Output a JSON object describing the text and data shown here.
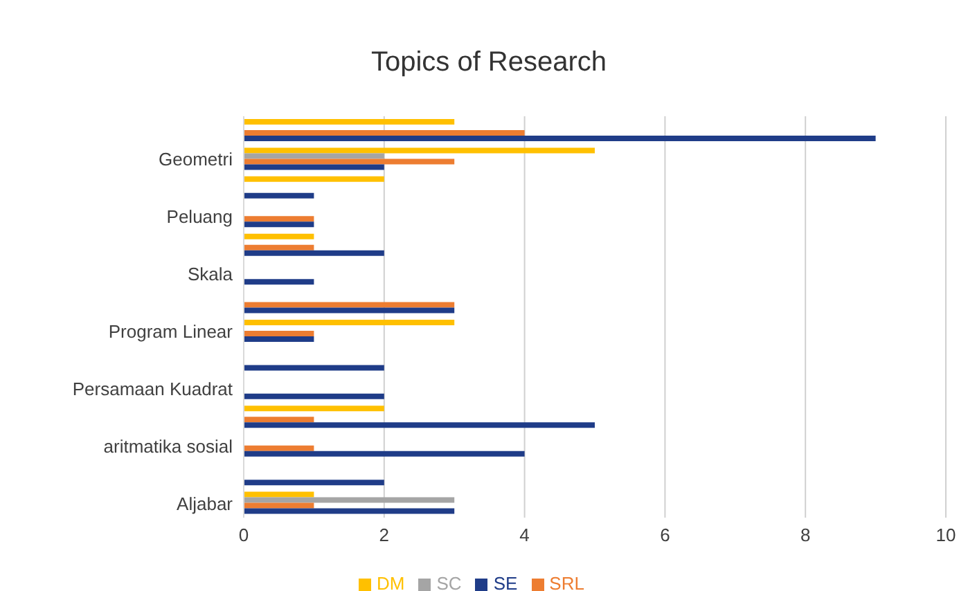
{
  "chart_data": {
    "type": "bar",
    "orientation": "horizontal",
    "title": "Topics of Research",
    "categories": [
      null,
      "Geometri",
      null,
      "Peluang",
      null,
      "Skala",
      null,
      "Program Linear",
      null,
      "Persamaan Kuadrat",
      null,
      "aritmatika sosial",
      null,
      "Aljabar"
    ],
    "series": [
      {
        "name": "DM",
        "color": "#ffc000",
        "values": [
          3,
          5,
          2,
          0,
          1,
          0,
          0,
          3,
          0,
          0,
          2,
          0,
          0,
          1
        ]
      },
      {
        "name": "SC",
        "color": "#a5a5a5",
        "values": [
          0,
          2,
          0,
          0,
          0,
          0,
          0,
          0,
          0,
          0,
          0,
          0,
          0,
          3
        ]
      },
      {
        "name": "SRL",
        "color": "#ed7d31",
        "values": [
          4,
          3,
          0,
          1,
          1,
          0,
          3,
          1,
          0,
          0,
          1,
          1,
          0,
          1
        ]
      },
      {
        "name": "SE",
        "color": "#1f3c88",
        "values": [
          9,
          2,
          1,
          1,
          2,
          1,
          3,
          1,
          2,
          2,
          5,
          4,
          2,
          3
        ]
      }
    ],
    "xlim": [
      0,
      10
    ],
    "xticks": [
      0,
      2,
      4,
      6,
      8,
      10
    ],
    "grid": "x",
    "legend": "bottom"
  }
}
